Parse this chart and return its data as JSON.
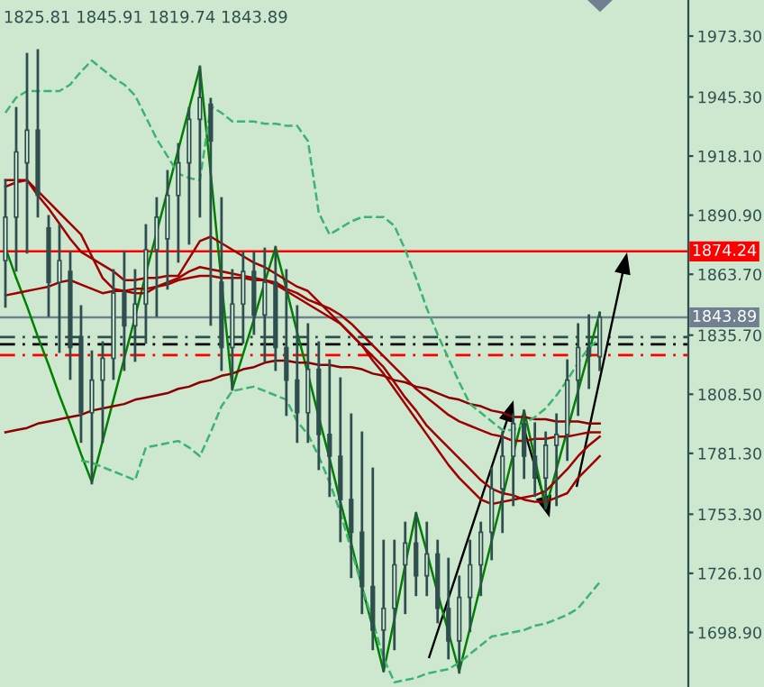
{
  "chart_data": {
    "type": "candlestick",
    "color": "#2f4f4f",
    "categories": [
      null,
      null,
      null,
      null,
      null,
      null,
      null,
      null,
      null,
      null,
      null,
      null,
      null,
      null,
      null,
      null,
      null,
      null,
      null,
      null,
      null,
      null,
      null,
      null,
      null,
      null,
      null,
      null,
      null,
      null,
      null,
      null,
      null,
      null,
      null,
      null,
      null,
      null,
      null,
      null,
      null,
      null,
      null,
      null,
      null,
      null,
      null,
      null,
      null,
      null,
      null,
      null,
      null,
      null,
      null,
      null
    ],
    "ohlc": [
      [
        1870,
        1906.9,
        1848.9,
        1890
      ],
      [
        1890,
        1940.1,
        1865.5,
        1920
      ],
      [
        1915,
        1965.0,
        1873.8,
        1930
      ],
      [
        1930,
        1966.7,
        1890.4,
        1900
      ],
      [
        1885,
        1890.4,
        1844.7,
        1860
      ],
      [
        1860,
        1886.2,
        1828.1,
        1870
      ],
      [
        1865,
        1873.8,
        1815.7,
        1830
      ],
      [
        1835,
        1848.9,
        1786.7,
        1800
      ],
      [
        1800,
        1828.1,
        1767.6,
        1815
      ],
      [
        1815,
        1832.3,
        1786.7,
        1825
      ],
      [
        1825,
        1865.5,
        1815.7,
        1855
      ],
      [
        1855,
        1873.8,
        1819.8,
        1840
      ],
      [
        1840,
        1865.5,
        1824.0,
        1850
      ],
      [
        1850,
        1886.2,
        1832.3,
        1875
      ],
      [
        1875,
        1898.6,
        1844.7,
        1890
      ],
      [
        1880,
        1911.1,
        1857.2,
        1900
      ],
      [
        1900,
        1923.5,
        1869.6,
        1915
      ],
      [
        1915,
        1940.1,
        1877.9,
        1935
      ],
      [
        1935,
        1959.2,
        1890.4,
        1945
      ],
      [
        1942,
        1944.3,
        1840.6,
        1925
      ],
      [
        1860,
        1898.6,
        1819.8,
        1830
      ],
      [
        1830,
        1865.5,
        1810.7,
        1850
      ],
      [
        1850,
        1873.8,
        1832.3,
        1865
      ],
      [
        1865,
        1873.8,
        1836.4,
        1845
      ],
      [
        1845,
        1875.4,
        1824.0,
        1860
      ],
      [
        1860,
        1876.2,
        1819.8,
        1830
      ],
      [
        1830,
        1865.5,
        1799.1,
        1815
      ],
      [
        1815,
        1848.9,
        1786.7,
        1800
      ],
      [
        1800,
        1840.6,
        1786.7,
        1820
      ],
      [
        1820,
        1832.3,
        1774.2,
        1790
      ],
      [
        1790,
        1824.0,
        1761.8,
        1780
      ],
      [
        1780,
        1815.7,
        1741.0,
        1760
      ],
      [
        1760,
        1799.1,
        1724.5,
        1745
      ],
      [
        1745,
        1790.8,
        1707.9,
        1720
      ],
      [
        1720,
        1774.2,
        1691.3,
        1700
      ],
      [
        1700,
        1741.0,
        1681.3,
        1710
      ],
      [
        1710,
        1741.0,
        1691.3,
        1730
      ],
      [
        1730,
        1749.3,
        1707.9,
        1740
      ],
      [
        1740,
        1753.5,
        1716.2,
        1725
      ],
      [
        1725,
        1749.3,
        1716.2,
        1735
      ],
      [
        1735,
        1741.0,
        1703.7,
        1710
      ],
      [
        1710,
        1732.7,
        1687.1,
        1695
      ],
      [
        1695,
        1724.5,
        1680.5,
        1715
      ],
      [
        1715,
        1741.0,
        1699.6,
        1730
      ],
      [
        1730,
        1749.3,
        1716.2,
        1745
      ],
      [
        1745,
        1774.2,
        1732.7,
        1765
      ],
      [
        1765,
        1790.8,
        1745.2,
        1780
      ],
      [
        1780,
        1799.1,
        1757.6,
        1795
      ],
      [
        1795,
        1800.8,
        1770.1,
        1780
      ],
      [
        1780,
        1795.0,
        1761.8,
        1770
      ],
      [
        1770,
        1790.8,
        1756.0,
        1785
      ],
      [
        1785,
        1799.1,
        1757.6,
        1790
      ],
      [
        1790,
        1824.0,
        1778.4,
        1815
      ],
      [
        1815,
        1840.6,
        1799.1,
        1830
      ],
      [
        1830,
        1844.7,
        1811.5,
        1826
      ],
      [
        1825.81,
        1845.91,
        1819.74,
        1843.89
      ]
    ],
    "series": [
      {
        "type": "line",
        "color": "#008000",
        "line_style": "solid",
        "values": [
          1876,
          1862,
          1849,
          1835,
          1822,
          1808,
          1795,
          1781,
          1768,
          1787,
          1806,
          1825,
          1844,
          1864,
          1883,
          1902,
          1921,
          1940,
          1959,
          1910,
          1860,
          1811,
          1827,
          1843,
          1860,
          1876,
          1857,
          1837,
          1818,
          1798,
          1779,
          1759,
          1740,
          1720,
          1701,
          1681,
          1705,
          1730,
          1754,
          1736,
          1717,
          1699,
          1681,
          1701,
          1721,
          1741,
          1761,
          1781,
          1801,
          1779,
          1756,
          1774,
          1792,
          1810,
          1828,
          1846
        ]
      },
      {
        "type": "line",
        "color": "#8b0000",
        "line_style": "solid",
        "values": [
          1791,
          1792,
          1793,
          1795,
          1796,
          1797,
          1798,
          1799,
          1801,
          1802,
          1803,
          1804,
          1806,
          1807,
          1808,
          1809,
          1811,
          1812,
          1814,
          1815,
          1817,
          1818,
          1820,
          1821,
          1823,
          1824,
          1824,
          1823,
          1823,
          1822,
          1822,
          1821,
          1821,
          1820,
          1818,
          1817,
          1815,
          1814,
          1812,
          1811,
          1809,
          1807,
          1806,
          1804,
          1803,
          1801,
          1800,
          1798,
          1798,
          1797,
          1797,
          1796,
          1796,
          1796,
          1795,
          1795
        ]
      },
      {
        "type": "line",
        "color": "#a00000",
        "line_style": "solid",
        "values": [
          1907,
          1907,
          1907,
          1902,
          1897,
          1892,
          1887,
          1882,
          1872,
          1862,
          1857,
          1856,
          1855,
          1855,
          1858,
          1860,
          1862,
          1865,
          1867,
          1866,
          1865,
          1864,
          1863,
          1862,
          1861,
          1859,
          1856,
          1853,
          1850,
          1847,
          1844,
          1841,
          1836,
          1831,
          1826,
          1821,
          1814,
          1807,
          1801,
          1794,
          1789,
          1784,
          1779,
          1774,
          1769,
          1765,
          1763,
          1762,
          1760,
          1759,
          1759,
          1761,
          1763,
          1770,
          1775,
          1780
        ]
      },
      {
        "type": "line",
        "color": "#a00000",
        "line_style": "solid",
        "values": [
          1904,
          1906,
          1907,
          1900,
          1894,
          1887,
          1880,
          1874,
          1871,
          1868,
          1865,
          1861,
          1861,
          1862,
          1862,
          1863,
          1863,
          1871,
          1879,
          1881,
          1878,
          1875,
          1872,
          1869,
          1867,
          1864,
          1861,
          1858,
          1856,
          1851,
          1846,
          1841,
          1836,
          1831,
          1824,
          1818,
          1811,
          1804,
          1797,
          1790,
          1783,
          1776,
          1770,
          1765,
          1760,
          1758,
          1759,
          1760,
          1761,
          1762,
          1764,
          1769,
          1774,
          1780,
          1785,
          1789
        ]
      },
      {
        "type": "line",
        "color": "#a00000",
        "line_style": "solid",
        "values": [
          1854,
          1855,
          1856,
          1857,
          1858,
          1860,
          1861,
          1859,
          1857,
          1855,
          1856,
          1856,
          1857,
          1857,
          1858,
          1859,
          1861,
          1862,
          1863,
          1863,
          1862,
          1862,
          1862,
          1861,
          1861,
          1860,
          1857,
          1855,
          1852,
          1850,
          1848,
          1845,
          1841,
          1836,
          1831,
          1826,
          1821,
          1816,
          1811,
          1807,
          1803,
          1799,
          1796,
          1794,
          1792,
          1790,
          1789,
          1787,
          1787,
          1788,
          1788,
          1789,
          1789,
          1790,
          1791,
          1791
        ]
      },
      {
        "type": "line",
        "color": "#3cb371",
        "line_style": "dashed",
        "values": [
          1938,
          1945,
          1948,
          1948,
          1948,
          1948,
          1951,
          1957,
          1962,
          1958,
          1954,
          1951,
          1946,
          1936,
          1926,
          1918,
          1910,
          1908,
          1907,
          1941,
          1938,
          1934,
          1934,
          1934,
          1933,
          1933,
          1932,
          1932,
          1925,
          1892,
          1882,
          1885,
          1888,
          1890,
          1890,
          1890,
          1886,
          1875,
          1862,
          1848,
          1836,
          1825,
          1814,
          1804,
          1800,
          1796,
          1792,
          1792,
          1795,
          1798,
          1802,
          1808,
          1815,
          1823,
          1830,
          1834
        ]
      },
      {
        "type": "line",
        "color": "#3cb371",
        "line_style": "dashed",
        "values": [
          null,
          null,
          null,
          null,
          null,
          null,
          null,
          1778,
          1777,
          1775,
          1773,
          1771,
          1769,
          1784,
          1785,
          1786,
          1787,
          1784,
          1780,
          1791,
          1803,
          1810,
          1811,
          1812,
          1810,
          1808,
          1806,
          1796,
          1790,
          1780,
          1768,
          1754,
          1737,
          1720,
          1704,
          1687,
          1676,
          1677,
          1678,
          1680,
          1681,
          1682,
          1685,
          1689,
          1693,
          1697,
          1698,
          1699,
          1700,
          1702,
          1703,
          1705,
          1707,
          1710,
          1716,
          1722
        ]
      }
    ],
    "ylim": [
      1673.8,
      1989.9
    ],
    "yticks": [
      {
        "value": 1973.3,
        "label": "1973.30"
      },
      {
        "value": 1945.3,
        "label": "1945.30"
      },
      {
        "value": 1918.1,
        "label": "1918.10"
      },
      {
        "value": 1890.9,
        "label": "1890.90"
      },
      {
        "value": 1863.7,
        "label": "1863.70"
      },
      {
        "value": 1835.7,
        "label": "1835.70"
      },
      {
        "value": 1808.5,
        "label": "1808.50"
      },
      {
        "value": 1781.3,
        "label": "1781.30"
      },
      {
        "value": 1753.3,
        "label": "1753.30"
      },
      {
        "value": 1726.1,
        "label": "1726.10"
      },
      {
        "value": 1698.9,
        "label": "1698.90"
      }
    ],
    "tick_labels": "y",
    "ref_lines": [
      {
        "axis": "y",
        "value": 1874.24,
        "label": "1874.24",
        "color": "#ff0000",
        "line_style": "solid"
      },
      {
        "axis": "y",
        "value": 1843.89,
        "label": "1843.89",
        "color": "#708090",
        "line_style": "solid"
      },
      {
        "axis": "y",
        "value": 1834.8,
        "color": "#2f4f4f",
        "line_style": "dashed"
      },
      {
        "axis": "y",
        "value": 1831.5,
        "color": "#000000",
        "line_style": "dashed"
      },
      {
        "axis": "y",
        "value": 1826.5,
        "color": "#ff0000",
        "line_style": "dashed"
      }
    ],
    "annotations": [
      "1825.81 1845.91 1819.74 1843.89"
    ]
  }
}
